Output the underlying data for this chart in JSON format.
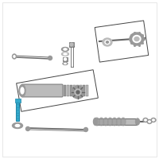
{
  "bg": "#ffffff",
  "border": "#dddddd",
  "gc": "#999999",
  "gc2": "#bbbbbb",
  "lc": "#666666",
  "bc": "#444444",
  "hc": "#33aacc",
  "hc2": "#2288aa",
  "figsize": [
    2.0,
    2.0
  ],
  "dpi": 100
}
